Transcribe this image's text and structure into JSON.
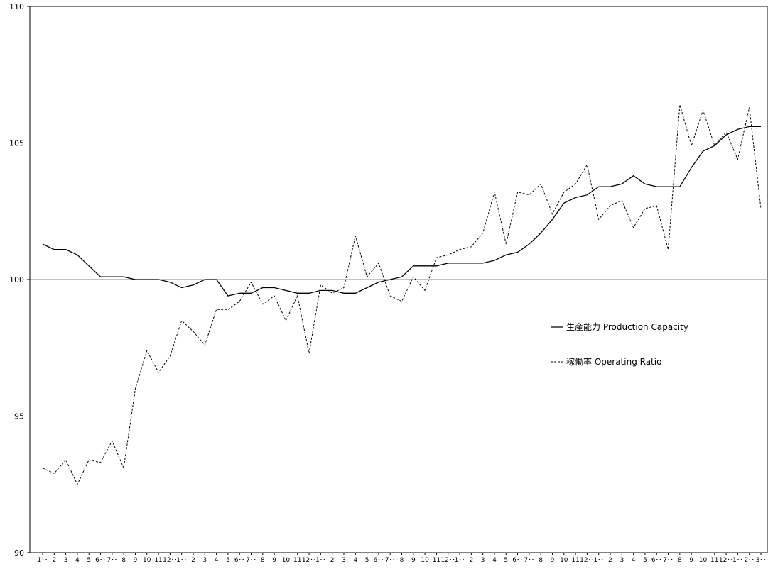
{
  "chart_data": {
    "type": "line",
    "title": "",
    "xlabel": "",
    "ylabel": "",
    "ylim": [
      90,
      110
    ],
    "yticks": [
      90,
      95,
      100,
      105,
      110
    ],
    "grid": "horizontal",
    "legend_position": "center-right",
    "x": [
      "1･･",
      "2",
      "3",
      "4",
      "5",
      "6･･",
      "7･･",
      "8",
      "9",
      "10",
      "11",
      "12･･",
      "1･･",
      "2",
      "3",
      "4",
      "5",
      "6･･",
      "7･･",
      "8",
      "9",
      "10",
      "11",
      "12･･",
      "1･･",
      "2",
      "3",
      "4",
      "5",
      "6･･",
      "7･･",
      "8",
      "9",
      "10",
      "11",
      "12･･",
      "1･･",
      "2",
      "3",
      "4",
      "5",
      "6･･",
      "7･･",
      "8",
      "9",
      "10",
      "11",
      "12･･",
      "1･･",
      "2",
      "3",
      "4",
      "5",
      "6･･",
      "7･･",
      "8",
      "9",
      "10",
      "11",
      "12･･",
      "1･･",
      "2･･",
      "3･･"
    ],
    "series": [
      {
        "name": "生産能力 Production Capacity",
        "style": "solid",
        "color": "#000000",
        "values": [
          101.3,
          101.1,
          101.1,
          100.9,
          100.5,
          100.1,
          100.1,
          100.1,
          100.0,
          100.0,
          100.0,
          99.9,
          99.7,
          99.8,
          100.0,
          100.0,
          99.4,
          99.5,
          99.5,
          99.7,
          99.7,
          99.6,
          99.5,
          99.5,
          99.6,
          99.6,
          99.5,
          99.5,
          99.7,
          99.9,
          100.0,
          100.1,
          100.5,
          100.5,
          100.5,
          100.6,
          100.6,
          100.6,
          100.6,
          100.7,
          100.9,
          101.0,
          101.3,
          101.7,
          102.2,
          102.8,
          103.0,
          103.1,
          103.4,
          103.4,
          103.5,
          103.8,
          103.5,
          103.4,
          103.4,
          103.4,
          104.1,
          104.7,
          104.9,
          105.3,
          105.5,
          105.6,
          105.6
        ]
      },
      {
        "name": "稼働率 Operating Ratio",
        "style": "dashed",
        "color": "#000000",
        "values": [
          93.1,
          92.9,
          93.4,
          92.5,
          93.4,
          93.3,
          94.1,
          93.1,
          96.0,
          97.4,
          96.6,
          97.2,
          98.5,
          98.1,
          97.6,
          98.9,
          98.9,
          99.2,
          99.9,
          99.1,
          99.4,
          98.5,
          99.4,
          97.3,
          99.8,
          99.5,
          99.7,
          101.6,
          100.1,
          100.6,
          99.4,
          99.2,
          100.1,
          99.6,
          100.8,
          100.9,
          101.1,
          101.2,
          101.7,
          103.2,
          101.3,
          103.2,
          103.1,
          103.5,
          102.4,
          103.2,
          103.5,
          104.2,
          102.2,
          102.7,
          102.9,
          101.9,
          102.6,
          102.7,
          101.1,
          106.4,
          104.9,
          106.2,
          104.9,
          105.4,
          104.4,
          106.3,
          102.6
        ]
      }
    ]
  }
}
